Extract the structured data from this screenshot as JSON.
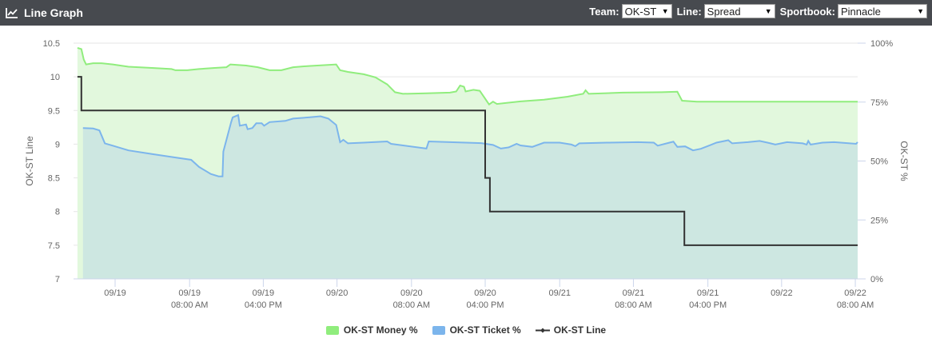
{
  "header": {
    "title": "Line Graph",
    "icon": "line-chart-icon",
    "team_label": "Team:",
    "team_value": "OK-ST",
    "line_label": "Line:",
    "line_value": "Spread",
    "sportbook_label": "Sportbook:",
    "sportbook_value": "Pinnacle"
  },
  "colors": {
    "money": "#90ed7d",
    "money_fill": "#e2f8dd",
    "ticket": "#7cb5ec",
    "ticket_fill": "#cde7e1",
    "line": "#333333"
  },
  "chart_data": {
    "type": "line",
    "x": {
      "range": [
        0,
        100
      ],
      "tick_positions": [
        5.3,
        14.8,
        24.2,
        33.6,
        43.1,
        52.5,
        62.0,
        71.4,
        80.9,
        90.3,
        99.7
      ],
      "tick_labels": [
        [
          "09/19"
        ],
        [
          "09/19",
          "08:00 AM"
        ],
        [
          "09/19",
          "04:00 PM"
        ],
        [
          "09/20"
        ],
        [
          "09/20",
          "08:00 AM"
        ],
        [
          "09/20",
          "04:00 PM"
        ],
        [
          "09/21"
        ],
        [
          "09/21",
          "08:00 AM"
        ],
        [
          "09/21",
          "04:00 PM"
        ],
        [
          "09/22"
        ],
        [
          "09/22",
          "08:00 AM"
        ]
      ]
    },
    "left_axis": {
      "label": "OK-ST Line",
      "ylim": [
        7,
        10.5
      ],
      "ticks": [
        "10.5",
        "10",
        "9.5",
        "9",
        "8.5",
        "8",
        "7.5",
        "7"
      ]
    },
    "right_axis": {
      "label": "OK-ST %",
      "ylim": [
        0,
        100
      ],
      "ticks": [
        "100%",
        "75%",
        "50%",
        "25%",
        "0%"
      ]
    },
    "series": [
      {
        "name": "OK-ST Money %",
        "type": "area",
        "axis": "right",
        "points": [
          [
            0.5,
            98
          ],
          [
            1.0,
            97.5
          ],
          [
            1.3,
            93
          ],
          [
            1.6,
            91
          ],
          [
            2.5,
            91.5
          ],
          [
            3.5,
            91.5
          ],
          [
            5,
            91
          ],
          [
            7,
            90
          ],
          [
            10,
            89.5
          ],
          [
            12.5,
            89
          ],
          [
            13,
            88.5
          ],
          [
            14.5,
            88.5
          ],
          [
            16,
            89
          ],
          [
            18,
            89.5
          ],
          [
            19.5,
            89.8
          ],
          [
            20,
            91
          ],
          [
            22,
            90.5
          ],
          [
            23.5,
            89.8
          ],
          [
            25,
            88.5
          ],
          [
            26.5,
            88.5
          ],
          [
            28,
            89.8
          ],
          [
            30,
            90.3
          ],
          [
            33.5,
            91
          ],
          [
            34,
            88.5
          ],
          [
            35,
            87.8
          ],
          [
            37,
            86.8
          ],
          [
            38.5,
            85.5
          ],
          [
            40,
            82.5
          ],
          [
            41,
            79.2
          ],
          [
            42,
            78.5
          ],
          [
            45,
            78.7
          ],
          [
            48,
            79
          ],
          [
            48.8,
            79.5
          ],
          [
            49.3,
            82
          ],
          [
            49.8,
            81.5
          ],
          [
            50,
            79.5
          ],
          [
            51,
            80.2
          ],
          [
            51.8,
            79.8
          ],
          [
            53,
            74
          ],
          [
            53.5,
            75.2
          ],
          [
            54,
            74.2
          ],
          [
            57,
            75.3
          ],
          [
            60,
            76
          ],
          [
            63,
            77.3
          ],
          [
            65,
            78.5
          ],
          [
            65.3,
            80
          ],
          [
            65.7,
            78.5
          ],
          [
            70,
            79
          ],
          [
            75,
            79.2
          ],
          [
            77,
            79.4
          ],
          [
            77.6,
            75.6
          ],
          [
            79.5,
            75.2
          ],
          [
            100,
            75.2
          ]
        ]
      },
      {
        "name": "OK-ST Ticket %",
        "type": "area",
        "axis": "right",
        "points": [
          [
            1.2,
            64
          ],
          [
            2.5,
            63.8
          ],
          [
            3.3,
            63
          ],
          [
            4.0,
            57.5
          ],
          [
            5,
            56.5
          ],
          [
            7,
            54.5
          ],
          [
            10,
            53
          ],
          [
            13,
            51.5
          ],
          [
            15,
            50.5
          ],
          [
            16,
            47.5
          ],
          [
            17.5,
            44.5
          ],
          [
            18.5,
            43.5
          ],
          [
            19,
            43.5
          ],
          [
            19.1,
            54
          ],
          [
            20.1,
            66.5
          ],
          [
            20.3,
            68.5
          ],
          [
            21,
            69.5
          ],
          [
            21.2,
            65
          ],
          [
            22,
            65.5
          ],
          [
            22.2,
            63.5
          ],
          [
            22.8,
            64
          ],
          [
            23.3,
            66
          ],
          [
            24,
            66
          ],
          [
            24.3,
            65
          ],
          [
            25,
            66.5
          ],
          [
            27,
            67
          ],
          [
            28,
            68
          ],
          [
            30,
            68.5
          ],
          [
            31.5,
            69
          ],
          [
            32.5,
            68
          ],
          [
            33.5,
            65.3
          ],
          [
            34,
            58
          ],
          [
            34.4,
            59
          ],
          [
            35,
            57.5
          ],
          [
            37,
            57.8
          ],
          [
            40,
            58.3
          ],
          [
            40.5,
            57.3
          ],
          [
            45,
            55.3
          ],
          [
            45.3,
            58.3
          ],
          [
            50,
            57.8
          ],
          [
            52,
            57.6
          ],
          [
            53.5,
            56.8
          ],
          [
            54.5,
            55.3
          ],
          [
            55.5,
            55.8
          ],
          [
            56.5,
            57.3
          ],
          [
            57,
            56.6
          ],
          [
            58.5,
            56
          ],
          [
            60,
            57.8
          ],
          [
            62,
            57.8
          ],
          [
            63.5,
            57
          ],
          [
            64,
            56.3
          ],
          [
            64.5,
            57.5
          ],
          [
            68,
            57.8
          ],
          [
            72,
            58
          ],
          [
            74,
            57.8
          ],
          [
            74.5,
            56.5
          ],
          [
            76,
            57.8
          ],
          [
            76.5,
            58.2
          ],
          [
            77,
            56
          ],
          [
            78,
            56.2
          ],
          [
            79,
            54.5
          ],
          [
            80,
            55.2
          ],
          [
            82,
            57.8
          ],
          [
            83.5,
            58.8
          ],
          [
            84,
            57.5
          ],
          [
            86,
            58
          ],
          [
            87.5,
            58.5
          ],
          [
            88.5,
            57.8
          ],
          [
            89.5,
            57
          ],
          [
            91,
            58
          ],
          [
            93,
            57.5
          ],
          [
            93.5,
            57
          ],
          [
            93.7,
            58.5
          ],
          [
            94,
            57
          ],
          [
            95.5,
            57.8
          ],
          [
            97,
            58
          ],
          [
            99,
            57.5
          ],
          [
            99.8,
            57.3
          ],
          [
            100,
            58
          ]
        ]
      },
      {
        "name": "OK-ST Line",
        "type": "step",
        "axis": "left",
        "points": [
          [
            0.5,
            10
          ],
          [
            1.0,
            10
          ],
          [
            1.0,
            9.5
          ],
          [
            52.5,
            9.5
          ],
          [
            52.5,
            8.5
          ],
          [
            53.1,
            8.5
          ],
          [
            53.1,
            8
          ],
          [
            77.9,
            8
          ],
          [
            77.9,
            7.5
          ],
          [
            100,
            7.5
          ]
        ]
      }
    ]
  },
  "legend": {
    "money": "OK-ST Money %",
    "ticket": "OK-ST Ticket %",
    "line": "OK-ST Line"
  }
}
